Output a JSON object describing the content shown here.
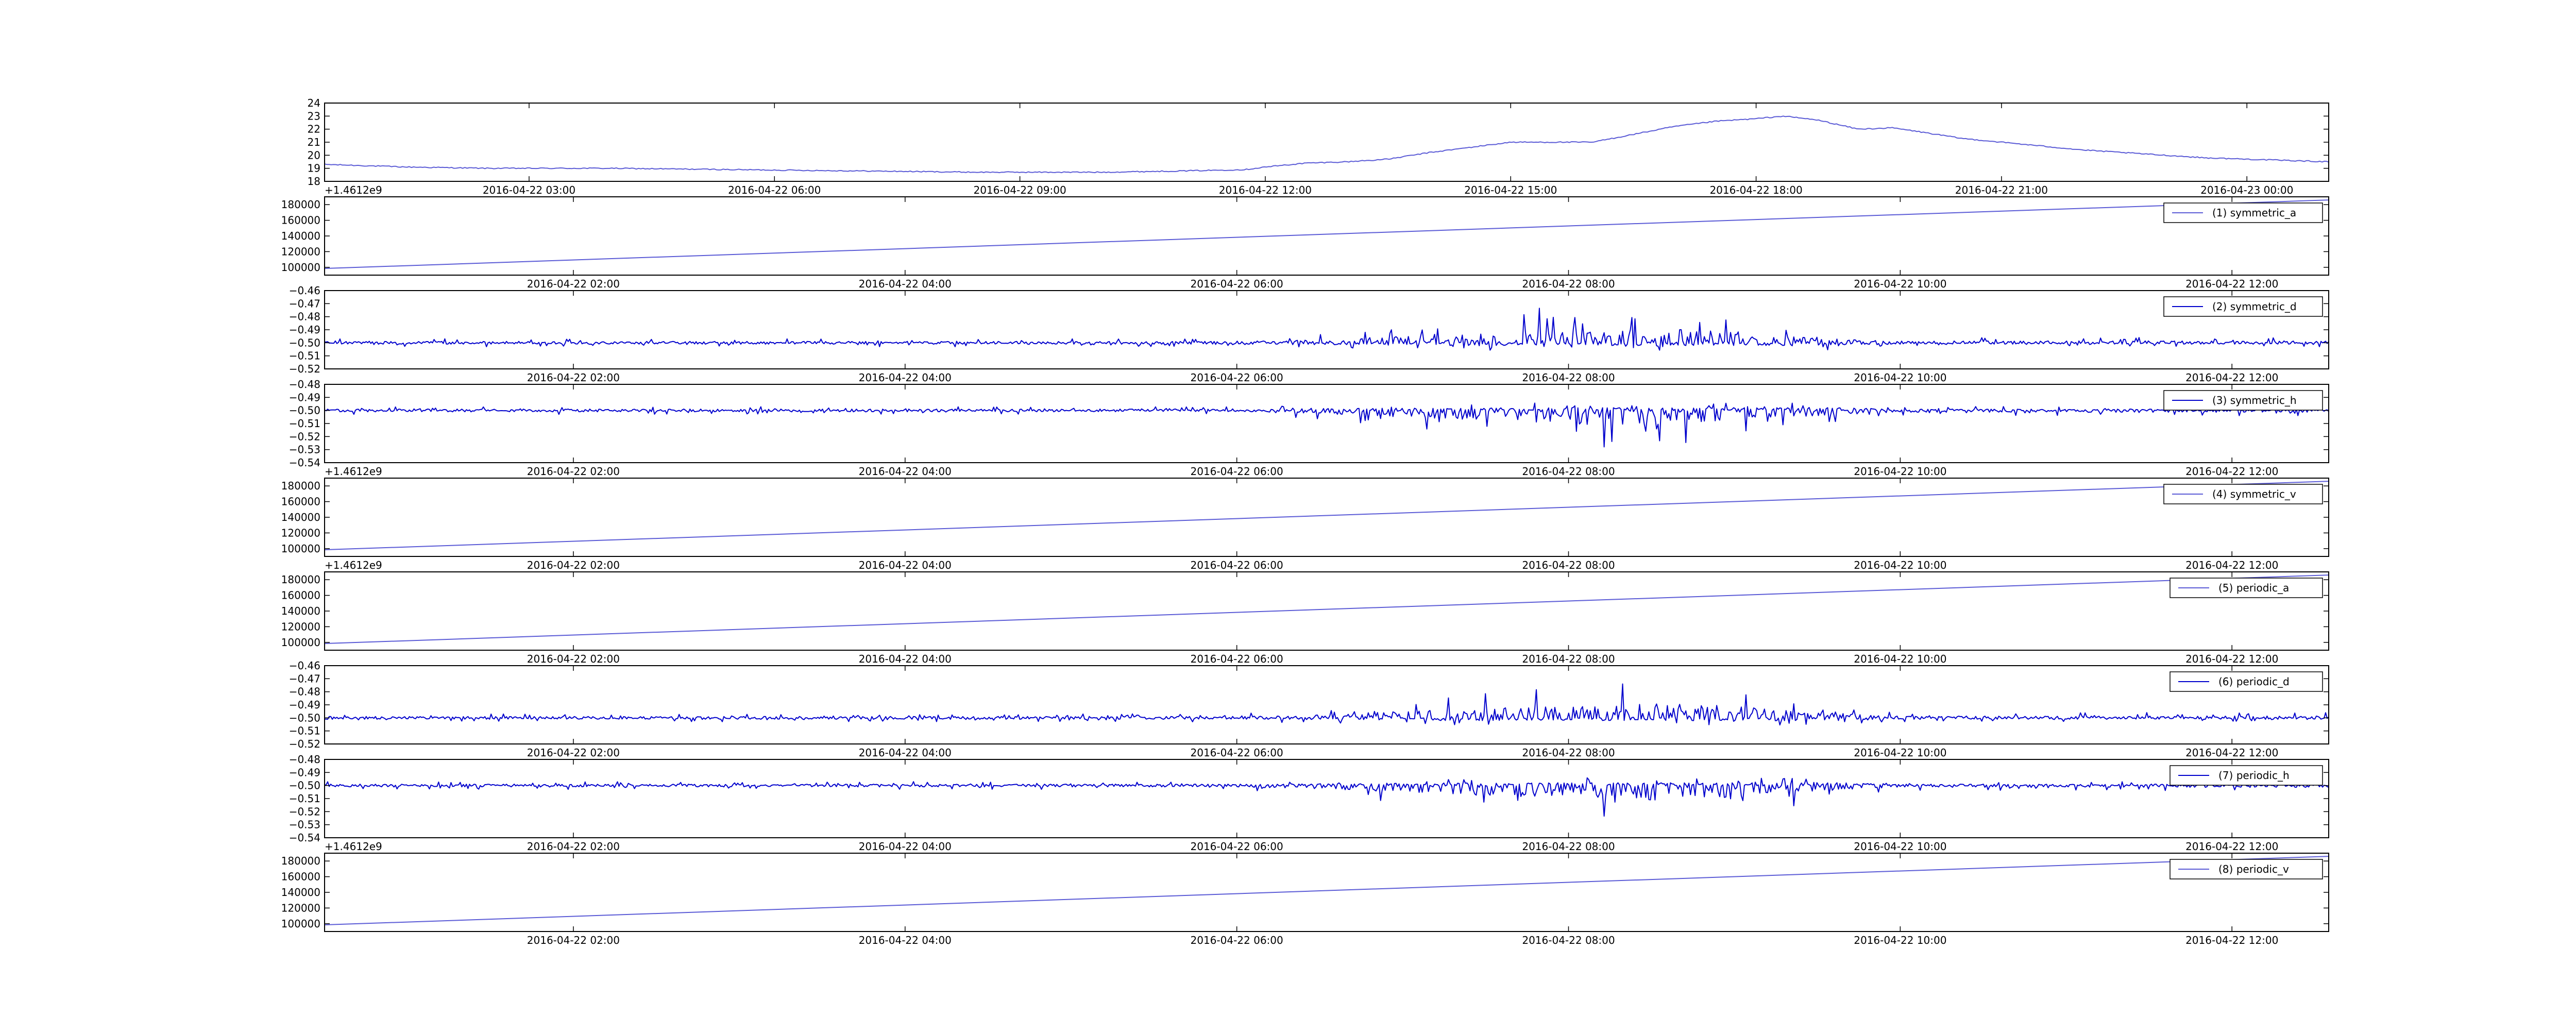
{
  "colors": {
    "smooth_line": "#5b5bd6",
    "noisy_line": "#0000cc",
    "axes": "#000000"
  },
  "chart_data": [
    {
      "type": "line",
      "title": "",
      "xlabel": "",
      "ylabel": "",
      "offset_label": "+1.4612e9",
      "legend": null,
      "grid": false,
      "x_start": "2016-04-22 00:30",
      "x_end": "2016-04-23 01:00",
      "ylim": [
        18,
        24
      ],
      "yticks": [
        "18",
        "19",
        "20",
        "21",
        "22",
        "23",
        "24"
      ],
      "xticks": [
        "2016-04-22 03:00",
        "2016-04-22 06:00",
        "2016-04-22 09:00",
        "2016-04-22 12:00",
        "2016-04-22 15:00",
        "2016-04-22 18:00",
        "2016-04-22 21:00",
        "2016-04-23 00:00"
      ],
      "series": [
        {
          "style": "smooth",
          "x": [
            "2016-04-22 00:30",
            "2016-04-22 01:30",
            "2016-04-22 02:30",
            "2016-04-22 04:00",
            "2016-04-22 05:30",
            "2016-04-22 07:00",
            "2016-04-22 08:30",
            "2016-04-22 10:00",
            "2016-04-22 11:00",
            "2016-04-22 11:45",
            "2016-04-22 12:00",
            "2016-04-22 12:30",
            "2016-04-22 13:00",
            "2016-04-22 13:30",
            "2016-04-22 14:00",
            "2016-04-22 14:30",
            "2016-04-22 15:00",
            "2016-04-22 15:30",
            "2016-04-22 16:00",
            "2016-04-22 16:30",
            "2016-04-22 17:00",
            "2016-04-22 17:30",
            "2016-04-22 18:00",
            "2016-04-22 18:20",
            "2016-04-22 18:45",
            "2016-04-22 19:15",
            "2016-04-22 19:40",
            "2016-04-22 20:00",
            "2016-04-22 20:30",
            "2016-04-22 21:00",
            "2016-04-22 21:30",
            "2016-04-22 22:00",
            "2016-04-22 22:30",
            "2016-04-22 23:00",
            "2016-04-22 23:30",
            "2016-04-23 00:00",
            "2016-04-23 00:30",
            "2016-04-23 01:00"
          ],
          "values": [
            19.3,
            19.1,
            19.0,
            19.0,
            18.9,
            18.8,
            18.7,
            18.7,
            18.8,
            18.9,
            19.1,
            19.4,
            19.5,
            19.7,
            20.2,
            20.6,
            21.0,
            21.0,
            21.0,
            21.6,
            22.2,
            22.6,
            22.8,
            23.0,
            22.7,
            22.0,
            22.1,
            21.8,
            21.3,
            21.0,
            20.7,
            20.4,
            20.2,
            20.0,
            19.8,
            19.7,
            19.6,
            19.5
          ]
        }
      ]
    },
    {
      "type": "line",
      "title": "",
      "xlabel": "",
      "ylabel": "",
      "legend": {
        "position": "top-right"
      },
      "grid": false,
      "x_start": "2016-04-22 00:30",
      "x_end": "2016-04-22 12:35",
      "ylim": [
        90000,
        190000
      ],
      "yticks": [
        "100000",
        "120000",
        "140000",
        "160000",
        "180000"
      ],
      "xticks": [
        "2016-04-22 02:00",
        "2016-04-22 04:00",
        "2016-04-22 06:00",
        "2016-04-22 08:00",
        "2016-04-22 10:00",
        "2016-04-22 12:00"
      ],
      "series": [
        {
          "name": "(1) symmetric_a",
          "style": "linear",
          "x": [
            "2016-04-22 00:30",
            "2016-04-22 12:35"
          ],
          "values": [
            98500,
            186000
          ]
        }
      ]
    },
    {
      "type": "line",
      "title": "",
      "xlabel": "",
      "ylabel": "",
      "legend": {
        "position": "top-right"
      },
      "grid": false,
      "x_start": "2016-04-22 00:30",
      "x_end": "2016-04-22 12:35",
      "ylim": [
        -0.52,
        -0.46
      ],
      "yticks": [
        "−0.52",
        "−0.51",
        "−0.50",
        "−0.49",
        "−0.48",
        "−0.47",
        "−0.46"
      ],
      "xticks": [
        "2016-04-22 02:00",
        "2016-04-22 04:00",
        "2016-04-22 06:00",
        "2016-04-22 08:00",
        "2016-04-22 10:00",
        "2016-04-22 12:00"
      ],
      "series": [
        {
          "name": "(2) symmetric_d",
          "style": "noise",
          "baseline": -0.5,
          "bursts": "up",
          "envelope_x": [
            "2016-04-22 00:30",
            "2016-04-22 06:00",
            "2016-04-22 06:30",
            "2016-04-22 07:15",
            "2016-04-22 08:00",
            "2016-04-22 08:30",
            "2016-04-22 09:00",
            "2016-04-22 09:30",
            "2016-04-22 10:00",
            "2016-04-22 12:35"
          ],
          "envelope_up": [
            0.003,
            0.003,
            0.007,
            0.018,
            0.03,
            0.032,
            0.025,
            0.012,
            0.004,
            0.004
          ],
          "envelope_down": [
            0.003,
            0.003,
            0.004,
            0.006,
            0.006,
            0.006,
            0.006,
            0.007,
            0.003,
            0.003
          ]
        }
      ]
    },
    {
      "type": "line",
      "title": "",
      "xlabel": "",
      "ylabel": "",
      "offset_label": "+1.4612e9",
      "legend": {
        "position": "top-right"
      },
      "grid": false,
      "x_start": "2016-04-22 00:30",
      "x_end": "2016-04-22 12:35",
      "ylim": [
        -0.54,
        -0.48
      ],
      "yticks": [
        "−0.54",
        "−0.53",
        "−0.52",
        "−0.51",
        "−0.50",
        "−0.49",
        "−0.48"
      ],
      "xticks": [
        "2016-04-22 02:00",
        "2016-04-22 04:00",
        "2016-04-22 06:00",
        "2016-04-22 08:00",
        "2016-04-22 10:00",
        "2016-04-22 12:00"
      ],
      "series": [
        {
          "name": "(3) symmetric_h",
          "style": "noise",
          "baseline": -0.5,
          "bursts": "down",
          "envelope_x": [
            "2016-04-22 00:30",
            "2016-04-22 06:00",
            "2016-04-22 06:30",
            "2016-04-22 07:15",
            "2016-04-22 08:00",
            "2016-04-22 08:30",
            "2016-04-22 09:00",
            "2016-04-22 09:30",
            "2016-04-22 10:00",
            "2016-04-22 12:35"
          ],
          "envelope_up": [
            0.003,
            0.003,
            0.004,
            0.006,
            0.006,
            0.006,
            0.006,
            0.007,
            0.003,
            0.003
          ],
          "envelope_down": [
            0.003,
            0.003,
            0.007,
            0.018,
            0.03,
            0.032,
            0.025,
            0.012,
            0.004,
            0.004
          ]
        }
      ]
    },
    {
      "type": "line",
      "title": "",
      "xlabel": "",
      "ylabel": "",
      "offset_label": "+1.4612e9",
      "legend": {
        "position": "top-right"
      },
      "grid": false,
      "x_start": "2016-04-22 00:30",
      "x_end": "2016-04-22 12:35",
      "ylim": [
        90000,
        190000
      ],
      "yticks": [
        "100000",
        "120000",
        "140000",
        "160000",
        "180000"
      ],
      "xticks": [
        "2016-04-22 02:00",
        "2016-04-22 04:00",
        "2016-04-22 06:00",
        "2016-04-22 08:00",
        "2016-04-22 10:00",
        "2016-04-22 12:00"
      ],
      "series": [
        {
          "name": "(4) symmetric_v",
          "style": "linear",
          "x": [
            "2016-04-22 00:30",
            "2016-04-22 12:35"
          ],
          "values": [
            98500,
            186000
          ]
        }
      ]
    },
    {
      "type": "line",
      "title": "",
      "xlabel": "",
      "ylabel": "",
      "legend": {
        "position": "top-right"
      },
      "grid": false,
      "x_start": "2016-04-22 00:30",
      "x_end": "2016-04-22 12:35",
      "ylim": [
        90000,
        190000
      ],
      "yticks": [
        "100000",
        "120000",
        "140000",
        "160000",
        "180000"
      ],
      "xticks": [
        "2016-04-22 02:00",
        "2016-04-22 04:00",
        "2016-04-22 06:00",
        "2016-04-22 08:00",
        "2016-04-22 10:00",
        "2016-04-22 12:00"
      ],
      "series": [
        {
          "name": "(5) periodic_a",
          "style": "linear",
          "x": [
            "2016-04-22 00:30",
            "2016-04-22 12:35"
          ],
          "values": [
            98500,
            186000
          ]
        }
      ]
    },
    {
      "type": "line",
      "title": "",
      "xlabel": "",
      "ylabel": "",
      "legend": {
        "position": "top-right"
      },
      "grid": false,
      "x_start": "2016-04-22 00:30",
      "x_end": "2016-04-22 12:35",
      "ylim": [
        -0.52,
        -0.46
      ],
      "yticks": [
        "−0.52",
        "−0.51",
        "−0.50",
        "−0.49",
        "−0.48",
        "−0.47",
        "−0.46"
      ],
      "xticks": [
        "2016-04-22 02:00",
        "2016-04-22 04:00",
        "2016-04-22 06:00",
        "2016-04-22 08:00",
        "2016-04-22 10:00",
        "2016-04-22 12:00"
      ],
      "series": [
        {
          "name": "(6) periodic_d",
          "style": "noise",
          "baseline": -0.5,
          "bursts": "up",
          "envelope_x": [
            "2016-04-22 00:30",
            "2016-04-22 06:00",
            "2016-04-22 06:30",
            "2016-04-22 07:15",
            "2016-04-22 08:00",
            "2016-04-22 08:30",
            "2016-04-22 09:00",
            "2016-04-22 09:30",
            "2016-04-22 10:00",
            "2016-04-22 12:35"
          ],
          "envelope_up": [
            0.003,
            0.003,
            0.007,
            0.018,
            0.03,
            0.032,
            0.025,
            0.012,
            0.004,
            0.004
          ],
          "envelope_down": [
            0.003,
            0.003,
            0.004,
            0.006,
            0.006,
            0.006,
            0.006,
            0.007,
            0.003,
            0.003
          ]
        }
      ]
    },
    {
      "type": "line",
      "title": "",
      "xlabel": "",
      "ylabel": "",
      "offset_label": "+1.4612e9",
      "legend": {
        "position": "top-right"
      },
      "grid": false,
      "x_start": "2016-04-22 00:30",
      "x_end": "2016-04-22 12:35",
      "ylim": [
        -0.54,
        -0.48
      ],
      "yticks": [
        "−0.54",
        "−0.53",
        "−0.52",
        "−0.51",
        "−0.50",
        "−0.49",
        "−0.48"
      ],
      "xticks": [
        "2016-04-22 02:00",
        "2016-04-22 04:00",
        "2016-04-22 06:00",
        "2016-04-22 08:00",
        "2016-04-22 10:00",
        "2016-04-22 12:00"
      ],
      "series": [
        {
          "name": "(7) periodic_h",
          "style": "noise",
          "baseline": -0.5,
          "bursts": "down",
          "envelope_x": [
            "2016-04-22 00:30",
            "2016-04-22 06:00",
            "2016-04-22 06:30",
            "2016-04-22 07:15",
            "2016-04-22 08:00",
            "2016-04-22 08:30",
            "2016-04-22 09:00",
            "2016-04-22 09:30",
            "2016-04-22 10:00",
            "2016-04-22 12:35"
          ],
          "envelope_up": [
            0.003,
            0.003,
            0.004,
            0.006,
            0.006,
            0.006,
            0.006,
            0.007,
            0.003,
            0.003
          ],
          "envelope_down": [
            0.003,
            0.003,
            0.007,
            0.018,
            0.03,
            0.032,
            0.025,
            0.012,
            0.004,
            0.004
          ]
        }
      ]
    },
    {
      "type": "line",
      "title": "",
      "xlabel": "",
      "ylabel": "",
      "legend": {
        "position": "top-right"
      },
      "grid": false,
      "x_start": "2016-04-22 00:30",
      "x_end": "2016-04-22 12:35",
      "ylim": [
        90000,
        190000
      ],
      "yticks": [
        "100000",
        "120000",
        "140000",
        "160000",
        "180000"
      ],
      "xticks": [
        "2016-04-22 02:00",
        "2016-04-22 04:00",
        "2016-04-22 06:00",
        "2016-04-22 08:00",
        "2016-04-22 10:00",
        "2016-04-22 12:00"
      ],
      "series": [
        {
          "name": "(8) periodic_v",
          "style": "linear",
          "x": [
            "2016-04-22 00:30",
            "2016-04-22 12:35"
          ],
          "values": [
            98500,
            186000
          ]
        }
      ]
    }
  ]
}
